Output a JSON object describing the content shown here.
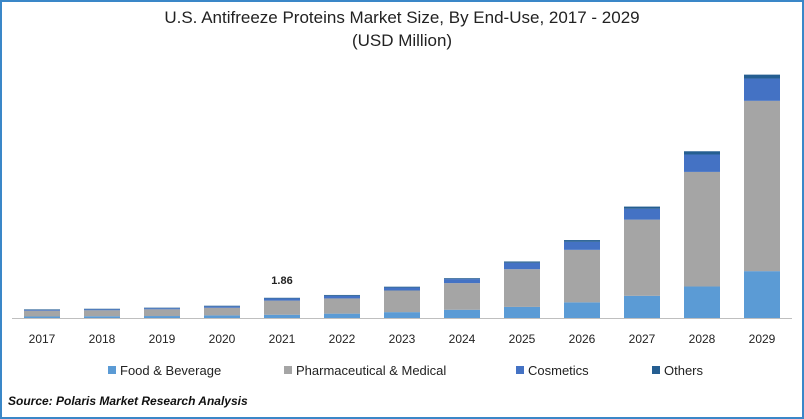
{
  "chart_data": {
    "type": "bar",
    "stacked": true,
    "title": "U.S. Antifreeze Proteins Market Size, By End-Use, 2017 - 2029",
    "subtitle": "(USD Million)",
    "xlabel": "",
    "ylabel": "",
    "grid": false,
    "legend_position": "bottom",
    "categories": [
      "2017",
      "2018",
      "2019",
      "2020",
      "2021",
      "2022",
      "2023",
      "2024",
      "2025",
      "2026",
      "2027",
      "2028",
      "2029"
    ],
    "series": [
      {
        "name": "Food & Beverage",
        "color": "#5b9bd5",
        "values": [
          0.14,
          0.16,
          0.18,
          0.24,
          0.3,
          0.4,
          0.54,
          0.76,
          1.02,
          1.44,
          2.04,
          2.9,
          4.31
        ]
      },
      {
        "name": "Pharmaceutical & Medical",
        "color": "#a5a5a5",
        "values": [
          0.53,
          0.55,
          0.62,
          0.7,
          1.3,
          1.4,
          1.99,
          2.45,
          3.47,
          4.83,
          7.01,
          10.54,
          15.67
        ]
      },
      {
        "name": "Cosmetics",
        "color": "#4472c4",
        "values": [
          0.08,
          0.09,
          0.1,
          0.13,
          0.2,
          0.24,
          0.27,
          0.37,
          0.59,
          0.74,
          1.0,
          1.6,
          2.05
        ]
      },
      {
        "name": "Others",
        "color": "#255e91",
        "values": [
          0.05,
          0.05,
          0.05,
          0.06,
          0.06,
          0.08,
          0.08,
          0.08,
          0.12,
          0.16,
          0.2,
          0.3,
          0.36
        ]
      }
    ],
    "ylim": [
      0,
      23
    ],
    "annotations": [
      {
        "category": "2021",
        "label": "1.86"
      }
    ]
  },
  "source_text": "Source: Polaris  Market Research Analysis"
}
